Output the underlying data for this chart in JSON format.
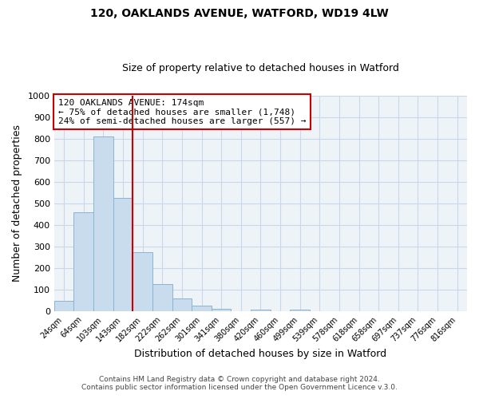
{
  "title": "120, OAKLANDS AVENUE, WATFORD, WD19 4LW",
  "subtitle": "Size of property relative to detached houses in Watford",
  "xlabel": "Distribution of detached houses by size in Watford",
  "ylabel": "Number of detached properties",
  "bar_labels": [
    "24sqm",
    "64sqm",
    "103sqm",
    "143sqm",
    "182sqm",
    "222sqm",
    "262sqm",
    "301sqm",
    "341sqm",
    "380sqm",
    "420sqm",
    "460sqm",
    "499sqm",
    "539sqm",
    "578sqm",
    "618sqm",
    "658sqm",
    "697sqm",
    "737sqm",
    "776sqm",
    "816sqm"
  ],
  "bar_values": [
    47,
    460,
    810,
    525,
    275,
    125,
    58,
    25,
    12,
    0,
    8,
    0,
    8,
    0,
    0,
    0,
    0,
    0,
    0,
    0,
    0
  ],
  "bar_color": "#c8dced",
  "bar_edgecolor": "#8ab4d4",
  "vline_x": 3.5,
  "vline_color": "#cc0000",
  "annotation_title": "120 OAKLANDS AVENUE: 174sqm",
  "annotation_line1": "← 75% of detached houses are smaller (1,748)",
  "annotation_line2": "24% of semi-detached houses are larger (557) →",
  "annotation_box_edgecolor": "#cc0000",
  "ylim": [
    0,
    1000
  ],
  "yticks": [
    0,
    100,
    200,
    300,
    400,
    500,
    600,
    700,
    800,
    900,
    1000
  ],
  "footer1": "Contains HM Land Registry data © Crown copyright and database right 2024.",
  "footer2": "Contains public sector information licensed under the Open Government Licence v.3.0.",
  "bg_color": "#ffffff",
  "plot_bg_color": "#eef3f8",
  "grid_color": "#c8d8e8"
}
